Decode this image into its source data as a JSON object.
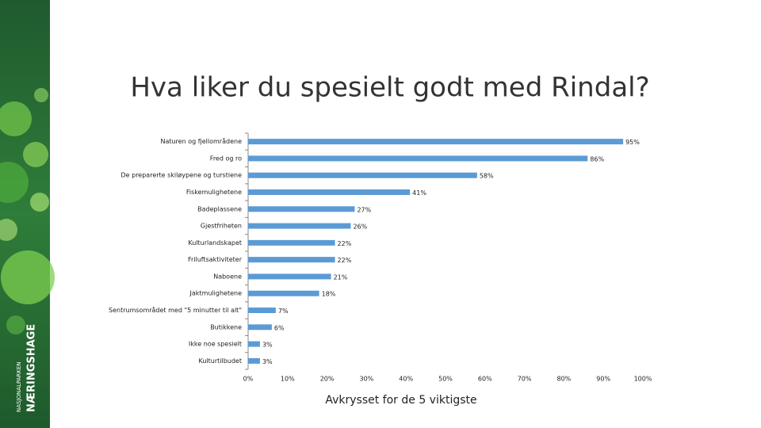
{
  "sidebar": {
    "brand_small": "NASJONALPARKEN",
    "brand": "NÆRINGSHAGE"
  },
  "chart_data": {
    "type": "hbar",
    "title": "Hva liker du spesielt godt med Rindal?",
    "x_label": "Avkrysset for de 5 viktigste",
    "categories": [
      "Naturen og fjellområdene",
      "Fred og ro",
      "De preparerte skiløypene og turstiene",
      "Fiskemulighetene",
      "Badeplassene",
      "Gjestfriheten",
      "Kulturlandskapet",
      "Friluftsaktiviteter",
      "Naboene",
      "Jaktmulighetene",
      "Sentrumsområdet med \"5 minutter til alt\"",
      "Butikkene",
      "Ikke noe spesielt",
      "Kulturtilbudet"
    ],
    "values": [
      95,
      86,
      58,
      41,
      27,
      26,
      22,
      22,
      21,
      18,
      7,
      6,
      3,
      3
    ],
    "value_labels": [
      "95%",
      "86%",
      "58%",
      "41%",
      "27%",
      "26%",
      "22%",
      "22%",
      "21%",
      "18%",
      "7%",
      "6%",
      "3%",
      "3%"
    ],
    "color": "#5b9bd5",
    "xlim": [
      0,
      100
    ],
    "xticks": [
      {
        "value": 0,
        "label": "0%"
      },
      {
        "value": 10,
        "label": "10%"
      },
      {
        "value": 20,
        "label": "20%"
      },
      {
        "value": 30,
        "label": "30%"
      },
      {
        "value": 40,
        "label": "40%"
      },
      {
        "value": 50,
        "label": "50%"
      },
      {
        "value": 60,
        "label": "60%"
      },
      {
        "value": 70,
        "label": "70%"
      },
      {
        "value": 80,
        "label": "80%"
      },
      {
        "value": 90,
        "label": "90%"
      },
      {
        "value": 100,
        "label": "100%"
      }
    ],
    "grid": false
  }
}
